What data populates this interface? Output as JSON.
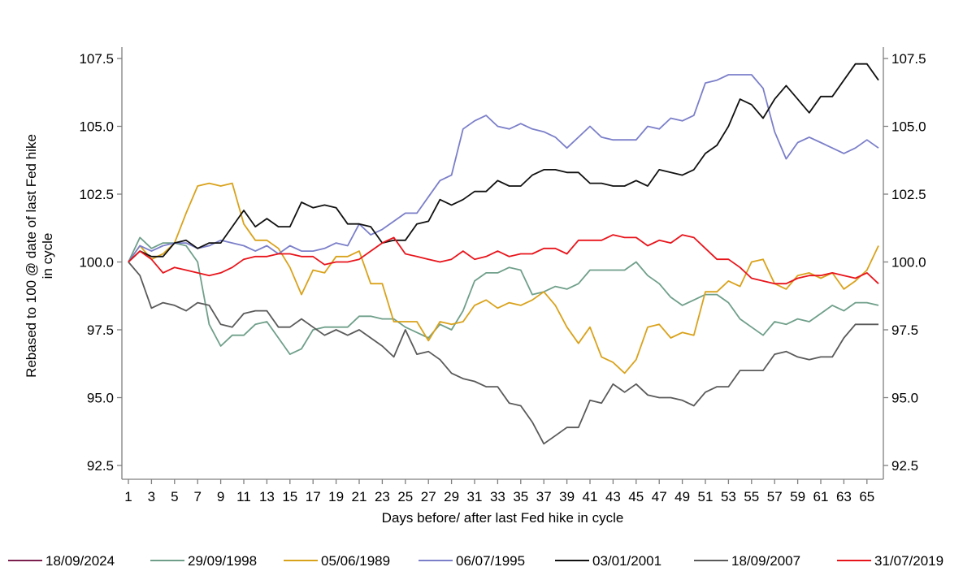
{
  "chart_data": {
    "type": "line",
    "xlabel": "Days before/ after last Fed hike in cycle",
    "ylabel_lines": [
      "Rebased to 100 @ date of last Fed hike",
      "in cycle"
    ],
    "xlim": [
      1,
      66
    ],
    "ylim": [
      92.5,
      107.5
    ],
    "x_ticks": [
      1,
      3,
      5,
      7,
      9,
      11,
      13,
      15,
      17,
      19,
      21,
      23,
      25,
      27,
      29,
      31,
      33,
      35,
      37,
      39,
      41,
      43,
      45,
      47,
      49,
      51,
      53,
      55,
      57,
      59,
      61,
      63,
      65
    ],
    "y_ticks": [
      "92.5",
      "95.0",
      "97.5",
      "100.0",
      "102.5",
      "105.0",
      "107.5"
    ],
    "grid": false,
    "legend_position": "bottom",
    "series": [
      {
        "name": "18/09/2024",
        "color": "#7b1f4e",
        "x": [],
        "y": []
      },
      {
        "name": "29/09/1998",
        "color": "#6f9f8a",
        "x": [
          1,
          2,
          3,
          4,
          5,
          6,
          7,
          8,
          9,
          10,
          11,
          12,
          13,
          14,
          15,
          16,
          17,
          18,
          19,
          20,
          21,
          22,
          23,
          24,
          25,
          26,
          27,
          28,
          29,
          30,
          31,
          32,
          33,
          34,
          35,
          36,
          37,
          38,
          39,
          40,
          41,
          42,
          43,
          44,
          45,
          46,
          47,
          48,
          49,
          50,
          51,
          52,
          53,
          54,
          55,
          56,
          57,
          58,
          59,
          60,
          61,
          62,
          63,
          64,
          65,
          66
        ],
        "y": [
          100.0,
          100.9,
          100.5,
          100.7,
          100.7,
          100.6,
          100.0,
          97.7,
          96.9,
          97.3,
          97.3,
          97.7,
          97.8,
          97.2,
          96.6,
          96.8,
          97.5,
          97.6,
          97.6,
          97.6,
          98.0,
          98.0,
          97.9,
          97.9,
          97.6,
          97.4,
          97.2,
          97.7,
          97.5,
          98.2,
          99.3,
          99.6,
          99.6,
          99.8,
          99.7,
          98.8,
          98.9,
          99.1,
          99.0,
          99.2,
          99.7,
          99.7,
          99.7,
          99.7,
          100.0,
          99.5,
          99.2,
          98.7,
          98.4,
          98.6,
          98.8,
          98.8,
          98.5,
          97.9,
          97.6,
          97.3,
          97.8,
          97.7,
          97.9,
          97.8,
          98.1,
          98.4,
          98.2,
          98.5,
          98.5,
          98.4
        ]
      },
      {
        "name": "05/06/1989",
        "color": "#d9a21b",
        "x": [
          1,
          2,
          3,
          4,
          5,
          6,
          7,
          8,
          9,
          10,
          11,
          12,
          13,
          14,
          15,
          16,
          17,
          18,
          19,
          20,
          21,
          22,
          23,
          24,
          25,
          26,
          27,
          28,
          29,
          30,
          31,
          32,
          33,
          34,
          35,
          36,
          37,
          38,
          39,
          40,
          41,
          42,
          43,
          44,
          45,
          46,
          47,
          48,
          49,
          50,
          51,
          52,
          53,
          54,
          55,
          56,
          57,
          58,
          59,
          60,
          61,
          62,
          63,
          64,
          65,
          66
        ],
        "y": [
          100.0,
          100.6,
          100.1,
          100.3,
          100.7,
          101.8,
          102.8,
          102.9,
          102.8,
          102.9,
          101.4,
          100.8,
          100.8,
          100.5,
          99.8,
          98.8,
          99.7,
          99.6,
          100.2,
          100.2,
          100.4,
          99.2,
          99.2,
          97.8,
          97.8,
          97.8,
          97.1,
          97.8,
          97.7,
          97.8,
          98.4,
          98.6,
          98.3,
          98.5,
          98.4,
          98.6,
          98.9,
          98.4,
          97.6,
          97.0,
          97.6,
          96.5,
          96.3,
          95.9,
          96.4,
          97.6,
          97.7,
          97.2,
          97.4,
          97.3,
          98.9,
          98.9,
          99.3,
          99.1,
          100.0,
          100.1,
          99.2,
          99.0,
          99.5,
          99.6,
          99.4,
          99.6,
          99.0,
          99.3,
          99.7,
          100.6
        ]
      },
      {
        "name": "06/07/1995",
        "color": "#7b7fc9",
        "x": [
          1,
          2,
          3,
          4,
          5,
          6,
          7,
          8,
          9,
          10,
          11,
          12,
          13,
          14,
          15,
          16,
          17,
          18,
          19,
          20,
          21,
          22,
          23,
          24,
          25,
          26,
          27,
          28,
          29,
          30,
          31,
          32,
          33,
          34,
          35,
          36,
          37,
          38,
          39,
          40,
          41,
          42,
          43,
          44,
          45,
          46,
          47,
          48,
          49,
          50,
          51,
          52,
          53,
          54,
          55,
          56,
          57,
          58,
          59,
          60,
          61,
          62,
          63,
          64,
          65,
          66
        ],
        "y": [
          100.0,
          100.6,
          100.4,
          100.6,
          100.7,
          100.7,
          100.5,
          100.6,
          100.8,
          100.7,
          100.6,
          100.4,
          100.6,
          100.3,
          100.6,
          100.4,
          100.4,
          100.5,
          100.7,
          100.6,
          101.4,
          101.0,
          101.2,
          101.5,
          101.8,
          101.8,
          102.4,
          103.0,
          103.2,
          104.9,
          105.2,
          105.4,
          105.0,
          104.9,
          105.1,
          104.9,
          104.8,
          104.6,
          104.2,
          104.6,
          105.0,
          104.6,
          104.5,
          104.5,
          104.5,
          105.0,
          104.9,
          105.3,
          105.2,
          105.4,
          106.6,
          106.7,
          106.9,
          106.9,
          106.9,
          106.4,
          104.8,
          103.8,
          104.4,
          104.6,
          104.4,
          104.2,
          104.0,
          104.2,
          104.5,
          104.2
        ]
      },
      {
        "name": "03/01/2001",
        "color": "#111111",
        "x": [
          1,
          2,
          3,
          4,
          5,
          6,
          7,
          8,
          9,
          10,
          11,
          12,
          13,
          14,
          15,
          16,
          17,
          18,
          19,
          20,
          21,
          22,
          23,
          24,
          25,
          26,
          27,
          28,
          29,
          30,
          31,
          32,
          33,
          34,
          35,
          36,
          37,
          38,
          39,
          40,
          41,
          42,
          43,
          44,
          45,
          46,
          47,
          48,
          49,
          50,
          51,
          52,
          53,
          54,
          55,
          56,
          57,
          58,
          59,
          60,
          61,
          62,
          63,
          64,
          65,
          66
        ],
        "y": [
          100.0,
          100.4,
          100.2,
          100.2,
          100.7,
          100.8,
          100.5,
          100.7,
          100.7,
          101.3,
          101.9,
          101.3,
          101.6,
          101.3,
          101.3,
          102.2,
          102.0,
          102.1,
          102.0,
          101.4,
          101.4,
          101.3,
          100.7,
          100.8,
          100.8,
          101.4,
          101.5,
          102.3,
          102.1,
          102.3,
          102.6,
          102.6,
          103.0,
          102.8,
          102.8,
          103.2,
          103.4,
          103.4,
          103.3,
          103.3,
          102.9,
          102.9,
          102.8,
          102.8,
          103.0,
          102.8,
          103.4,
          103.3,
          103.2,
          103.4,
          104.0,
          104.3,
          105.0,
          106.0,
          105.8,
          105.3,
          106.0,
          106.5,
          106.0,
          105.5,
          106.1,
          106.1,
          106.7,
          107.3,
          107.3,
          106.7
        ]
      },
      {
        "name": "18/09/2007",
        "color": "#5a5a5a",
        "x": [
          1,
          2,
          3,
          4,
          5,
          6,
          7,
          8,
          9,
          10,
          11,
          12,
          13,
          14,
          15,
          16,
          17,
          18,
          19,
          20,
          21,
          22,
          23,
          24,
          25,
          26,
          27,
          28,
          29,
          30,
          31,
          32,
          33,
          34,
          35,
          36,
          37,
          38,
          39,
          40,
          41,
          42,
          43,
          44,
          45,
          46,
          47,
          48,
          49,
          50,
          51,
          52,
          53,
          54,
          55,
          56,
          57,
          58,
          59,
          60,
          61,
          62,
          63,
          64,
          65,
          66
        ],
        "y": [
          100.0,
          99.5,
          98.3,
          98.5,
          98.4,
          98.2,
          98.5,
          98.4,
          97.7,
          97.6,
          98.1,
          98.2,
          98.2,
          97.6,
          97.6,
          97.9,
          97.6,
          97.3,
          97.5,
          97.3,
          97.5,
          97.2,
          96.9,
          96.5,
          97.5,
          96.6,
          96.7,
          96.4,
          95.9,
          95.7,
          95.6,
          95.4,
          95.4,
          94.8,
          94.7,
          94.1,
          93.3,
          93.6,
          93.9,
          93.9,
          94.9,
          94.8,
          95.5,
          95.2,
          95.5,
          95.1,
          95.0,
          95.0,
          94.9,
          94.7,
          95.2,
          95.4,
          95.4,
          96.0,
          96.0,
          96.0,
          96.6,
          96.7,
          96.5,
          96.4,
          96.5,
          96.5,
          97.2,
          97.7,
          97.7,
          97.7
        ]
      },
      {
        "name": "31/07/2019",
        "color": "#e8141b",
        "x": [
          1,
          2,
          3,
          4,
          5,
          6,
          7,
          8,
          9,
          10,
          11,
          12,
          13,
          14,
          15,
          16,
          17,
          18,
          19,
          20,
          21,
          22,
          23,
          24,
          25,
          26,
          27,
          28,
          29,
          30,
          31,
          32,
          33,
          34,
          35,
          36,
          37,
          38,
          39,
          40,
          41,
          42,
          43,
          44,
          45,
          46,
          47,
          48,
          49,
          50,
          51,
          52,
          53,
          54,
          55,
          56,
          57,
          58,
          59,
          60,
          61,
          62,
          63,
          64,
          65,
          66
        ],
        "y": [
          100.0,
          100.4,
          100.1,
          99.6,
          99.8,
          99.7,
          99.6,
          99.5,
          99.6,
          99.8,
          100.1,
          100.2,
          100.2,
          100.3,
          100.3,
          100.2,
          100.2,
          99.9,
          100.0,
          100.0,
          100.1,
          100.4,
          100.7,
          100.9,
          100.3,
          100.2,
          100.1,
          100.0,
          100.1,
          100.4,
          100.1,
          100.2,
          100.4,
          100.2,
          100.3,
          100.3,
          100.5,
          100.5,
          100.3,
          100.8,
          100.8,
          100.8,
          101.0,
          100.9,
          100.9,
          100.6,
          100.8,
          100.7,
          101.0,
          100.9,
          100.5,
          100.1,
          100.1,
          99.8,
          99.4,
          99.3,
          99.2,
          99.2,
          99.4,
          99.5,
          99.5,
          99.6,
          99.5,
          99.4,
          99.6,
          99.2
        ]
      }
    ]
  }
}
